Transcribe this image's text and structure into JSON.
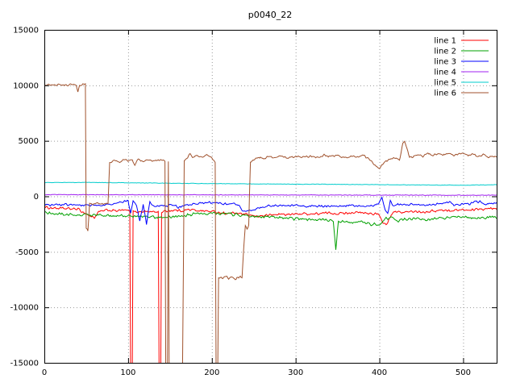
{
  "chart_data": {
    "type": "line",
    "title": "p0040_22",
    "xlabel": "",
    "ylabel": "",
    "xlim": [
      0,
      540
    ],
    "ylim": [
      -15000,
      15000
    ],
    "xticks": [
      0,
      100,
      200,
      300,
      400,
      500
    ],
    "yticks": [
      -15000,
      -10000,
      -5000,
      0,
      5000,
      10000,
      15000
    ],
    "grid": true,
    "legend_position": "top-right",
    "background": "#ffffff",
    "axis_color": "#000000",
    "grid_color": "#9a9a9a",
    "series": [
      {
        "name": "line 1",
        "color": "#ff0000",
        "noise": 130,
        "keypoints": [
          [
            0,
            -1000
          ],
          [
            20,
            -1100
          ],
          [
            40,
            -1150
          ],
          [
            55,
            -1800
          ],
          [
            60,
            -1900
          ],
          [
            65,
            -1400
          ],
          [
            75,
            -1250
          ],
          [
            85,
            -1300
          ],
          [
            95,
            -1250
          ],
          [
            100,
            -1300
          ],
          [
            102,
            -1350
          ],
          [
            103,
            -15500
          ],
          [
            105,
            -15500
          ],
          [
            106,
            -1350
          ],
          [
            112,
            -1400
          ],
          [
            120,
            -1350
          ],
          [
            128,
            -1400
          ],
          [
            136,
            -1400
          ],
          [
            137,
            -15500
          ],
          [
            139,
            -15500
          ],
          [
            140,
            -1400
          ],
          [
            148,
            -1300
          ],
          [
            156,
            -1250
          ],
          [
            164,
            -1300
          ],
          [
            172,
            -1200
          ],
          [
            180,
            -1250
          ],
          [
            188,
            -1300
          ],
          [
            196,
            -1350
          ],
          [
            204,
            -1400
          ],
          [
            212,
            -1500
          ],
          [
            220,
            -1550
          ],
          [
            228,
            -1500
          ],
          [
            236,
            -1600
          ],
          [
            244,
            -1700
          ],
          [
            252,
            -1800
          ],
          [
            260,
            -1750
          ],
          [
            268,
            -1700
          ],
          [
            276,
            -1650
          ],
          [
            284,
            -1600
          ],
          [
            292,
            -1650
          ],
          [
            300,
            -1600
          ],
          [
            310,
            -1550
          ],
          [
            320,
            -1600
          ],
          [
            330,
            -1550
          ],
          [
            340,
            -1500
          ],
          [
            350,
            -1550
          ],
          [
            360,
            -1500
          ],
          [
            370,
            -1450
          ],
          [
            380,
            -1500
          ],
          [
            390,
            -1550
          ],
          [
            398,
            -1600
          ],
          [
            404,
            -2300
          ],
          [
            408,
            -2600
          ],
          [
            412,
            -2000
          ],
          [
            416,
            -1500
          ],
          [
            420,
            -1400
          ],
          [
            428,
            -1450
          ],
          [
            436,
            -1400
          ],
          [
            444,
            -1350
          ],
          [
            452,
            -1400
          ],
          [
            460,
            -1350
          ],
          [
            468,
            -1300
          ],
          [
            476,
            -1250
          ],
          [
            484,
            -1300
          ],
          [
            492,
            -1250
          ],
          [
            500,
            -1200
          ],
          [
            508,
            -1250
          ],
          [
            516,
            -1150
          ],
          [
            524,
            -1200
          ],
          [
            532,
            -1100
          ],
          [
            540,
            -1150
          ]
        ]
      },
      {
        "name": "line 2",
        "color": "#00a000",
        "noise": 150,
        "keypoints": [
          [
            0,
            -1500
          ],
          [
            20,
            -1600
          ],
          [
            40,
            -1700
          ],
          [
            60,
            -1650
          ],
          [
            80,
            -1800
          ],
          [
            100,
            -1750
          ],
          [
            120,
            -1850
          ],
          [
            140,
            -1900
          ],
          [
            160,
            -1800
          ],
          [
            180,
            -1600
          ],
          [
            200,
            -1500
          ],
          [
            215,
            -1550
          ],
          [
            230,
            -1650
          ],
          [
            245,
            -1800
          ],
          [
            260,
            -1850
          ],
          [
            275,
            -1900
          ],
          [
            290,
            -2000
          ],
          [
            305,
            -2050
          ],
          [
            320,
            -2100
          ],
          [
            335,
            -2150
          ],
          [
            345,
            -2200
          ],
          [
            348,
            -4800
          ],
          [
            351,
            -2300
          ],
          [
            360,
            -2250
          ],
          [
            370,
            -2300
          ],
          [
            380,
            -2350
          ],
          [
            390,
            -2500
          ],
          [
            400,
            -2550
          ],
          [
            408,
            -2000
          ],
          [
            414,
            -1900
          ],
          [
            420,
            -2200
          ],
          [
            428,
            -2100
          ],
          [
            436,
            -2050
          ],
          [
            444,
            -2000
          ],
          [
            452,
            -2100
          ],
          [
            460,
            -2050
          ],
          [
            468,
            -2000
          ],
          [
            476,
            -1950
          ],
          [
            484,
            -1900
          ],
          [
            492,
            -1850
          ],
          [
            500,
            -1800
          ],
          [
            508,
            -1900
          ],
          [
            516,
            -2000
          ],
          [
            524,
            -1950
          ],
          [
            532,
            -1900
          ],
          [
            540,
            -1900
          ]
        ]
      },
      {
        "name": "line 3",
        "color": "#0000ff",
        "noise": 120,
        "keypoints": [
          [
            0,
            -800
          ],
          [
            30,
            -750
          ],
          [
            60,
            -800
          ],
          [
            85,
            -700
          ],
          [
            95,
            -500
          ],
          [
            100,
            -350
          ],
          [
            103,
            -1500
          ],
          [
            106,
            -300
          ],
          [
            110,
            -900
          ],
          [
            114,
            -2200
          ],
          [
            118,
            -700
          ],
          [
            122,
            -2500
          ],
          [
            126,
            -500
          ],
          [
            132,
            -1000
          ],
          [
            138,
            -800
          ],
          [
            145,
            -900
          ],
          [
            152,
            -750
          ],
          [
            160,
            -1000
          ],
          [
            168,
            -800
          ],
          [
            176,
            -700
          ],
          [
            184,
            -650
          ],
          [
            192,
            -600
          ],
          [
            200,
            -550
          ],
          [
            208,
            -600
          ],
          [
            216,
            -700
          ],
          [
            224,
            -650
          ],
          [
            232,
            -800
          ],
          [
            238,
            -1400
          ],
          [
            244,
            -1350
          ],
          [
            250,
            -1200
          ],
          [
            258,
            -1000
          ],
          [
            266,
            -900
          ],
          [
            274,
            -850
          ],
          [
            282,
            -800
          ],
          [
            290,
            -850
          ],
          [
            300,
            -800
          ],
          [
            310,
            -900
          ],
          [
            320,
            -850
          ],
          [
            330,
            -900
          ],
          [
            340,
            -850
          ],
          [
            350,
            -900
          ],
          [
            360,
            -850
          ],
          [
            370,
            -800
          ],
          [
            380,
            -850
          ],
          [
            390,
            -900
          ],
          [
            398,
            -700
          ],
          [
            403,
            -200
          ],
          [
            407,
            -1200
          ],
          [
            410,
            -1600
          ],
          [
            413,
            -400
          ],
          [
            417,
            -900
          ],
          [
            422,
            -700
          ],
          [
            430,
            -750
          ],
          [
            438,
            -700
          ],
          [
            446,
            -750
          ],
          [
            454,
            -800
          ],
          [
            462,
            -750
          ],
          [
            470,
            -700
          ],
          [
            478,
            -550
          ],
          [
            484,
            -500
          ],
          [
            490,
            -850
          ],
          [
            496,
            -700
          ],
          [
            502,
            -650
          ],
          [
            508,
            -700
          ],
          [
            514,
            -450
          ],
          [
            520,
            -500
          ],
          [
            526,
            -750
          ],
          [
            532,
            -700
          ],
          [
            540,
            -600
          ]
        ]
      },
      {
        "name": "line 4",
        "color": "#a020f0",
        "noise": 30,
        "keypoints": [
          [
            0,
            150
          ],
          [
            100,
            140
          ],
          [
            200,
            130
          ],
          [
            300,
            120
          ],
          [
            400,
            110
          ],
          [
            500,
            100
          ],
          [
            540,
            100
          ]
        ]
      },
      {
        "name": "line 5",
        "color": "#00cccc",
        "noise": 25,
        "keypoints": [
          [
            0,
            1250
          ],
          [
            60,
            1250
          ],
          [
            100,
            1220
          ],
          [
            150,
            1180
          ],
          [
            200,
            1150
          ],
          [
            250,
            1120
          ],
          [
            300,
            1100
          ],
          [
            350,
            1080
          ],
          [
            400,
            1050
          ],
          [
            450,
            1020
          ],
          [
            500,
            1000
          ],
          [
            540,
            1050
          ]
        ]
      },
      {
        "name": "line 6",
        "color": "#a0522d",
        "noise": 110,
        "keypoints": [
          [
            0,
            10100
          ],
          [
            3,
            10050
          ],
          [
            38,
            10050
          ],
          [
            40,
            9300
          ],
          [
            42,
            10050
          ],
          [
            47,
            10100
          ],
          [
            49,
            10150
          ],
          [
            50,
            -2900
          ],
          [
            52,
            -3100
          ],
          [
            54,
            -600
          ],
          [
            58,
            -800
          ],
          [
            62,
            -600
          ],
          [
            70,
            -700
          ],
          [
            76,
            -600
          ],
          [
            78,
            3000
          ],
          [
            82,
            3200
          ],
          [
            90,
            3100
          ],
          [
            95,
            3300
          ],
          [
            100,
            3200
          ],
          [
            105,
            3250
          ],
          [
            108,
            2800
          ],
          [
            112,
            3300
          ],
          [
            118,
            3150
          ],
          [
            124,
            3300
          ],
          [
            130,
            3200
          ],
          [
            136,
            3250
          ],
          [
            140,
            3300
          ],
          [
            144,
            3200
          ],
          [
            145,
            -15500
          ],
          [
            147,
            -15500
          ],
          [
            148,
            3100
          ],
          [
            149,
            -15500
          ],
          [
            165,
            -15500
          ],
          [
            167,
            3200
          ],
          [
            170,
            3400
          ],
          [
            174,
            3900
          ],
          [
            177,
            3500
          ],
          [
            182,
            3600
          ],
          [
            188,
            3500
          ],
          [
            194,
            3700
          ],
          [
            200,
            3500
          ],
          [
            204,
            3100
          ],
          [
            205,
            -15500
          ],
          [
            207,
            -15500
          ],
          [
            208,
            -7300
          ],
          [
            212,
            -7400
          ],
          [
            216,
            -7200
          ],
          [
            220,
            -7400
          ],
          [
            224,
            -7300
          ],
          [
            228,
            -7500
          ],
          [
            230,
            -7300
          ],
          [
            232,
            -7400
          ],
          [
            234,
            -7200
          ],
          [
            236,
            -7400
          ],
          [
            238,
            -4600
          ],
          [
            240,
            -2700
          ],
          [
            242,
            -3000
          ],
          [
            244,
            -2600
          ],
          [
            246,
            3100
          ],
          [
            250,
            3300
          ],
          [
            256,
            3500
          ],
          [
            262,
            3400
          ],
          [
            268,
            3600
          ],
          [
            274,
            3500
          ],
          [
            280,
            3650
          ],
          [
            290,
            3500
          ],
          [
            300,
            3600
          ],
          [
            310,
            3500
          ],
          [
            318,
            3650
          ],
          [
            326,
            3500
          ],
          [
            334,
            3700
          ],
          [
            342,
            3600
          ],
          [
            350,
            3650
          ],
          [
            358,
            3500
          ],
          [
            366,
            3600
          ],
          [
            374,
            3550
          ],
          [
            382,
            3650
          ],
          [
            388,
            3300
          ],
          [
            392,
            3000
          ],
          [
            396,
            2700
          ],
          [
            400,
            2600
          ],
          [
            404,
            2900
          ],
          [
            408,
            3200
          ],
          [
            414,
            3400
          ],
          [
            420,
            3500
          ],
          [
            424,
            3300
          ],
          [
            428,
            4700
          ],
          [
            430,
            5000
          ],
          [
            432,
            4500
          ],
          [
            436,
            3600
          ],
          [
            440,
            3500
          ],
          [
            446,
            3800
          ],
          [
            452,
            3600
          ],
          [
            458,
            3900
          ],
          [
            464,
            3700
          ],
          [
            470,
            3850
          ],
          [
            476,
            3700
          ],
          [
            482,
            3900
          ],
          [
            488,
            3700
          ],
          [
            494,
            3800
          ],
          [
            500,
            3900
          ],
          [
            506,
            3650
          ],
          [
            512,
            3800
          ],
          [
            518,
            3600
          ],
          [
            524,
            3750
          ],
          [
            530,
            3500
          ],
          [
            534,
            3650
          ],
          [
            540,
            3600
          ]
        ]
      }
    ]
  }
}
